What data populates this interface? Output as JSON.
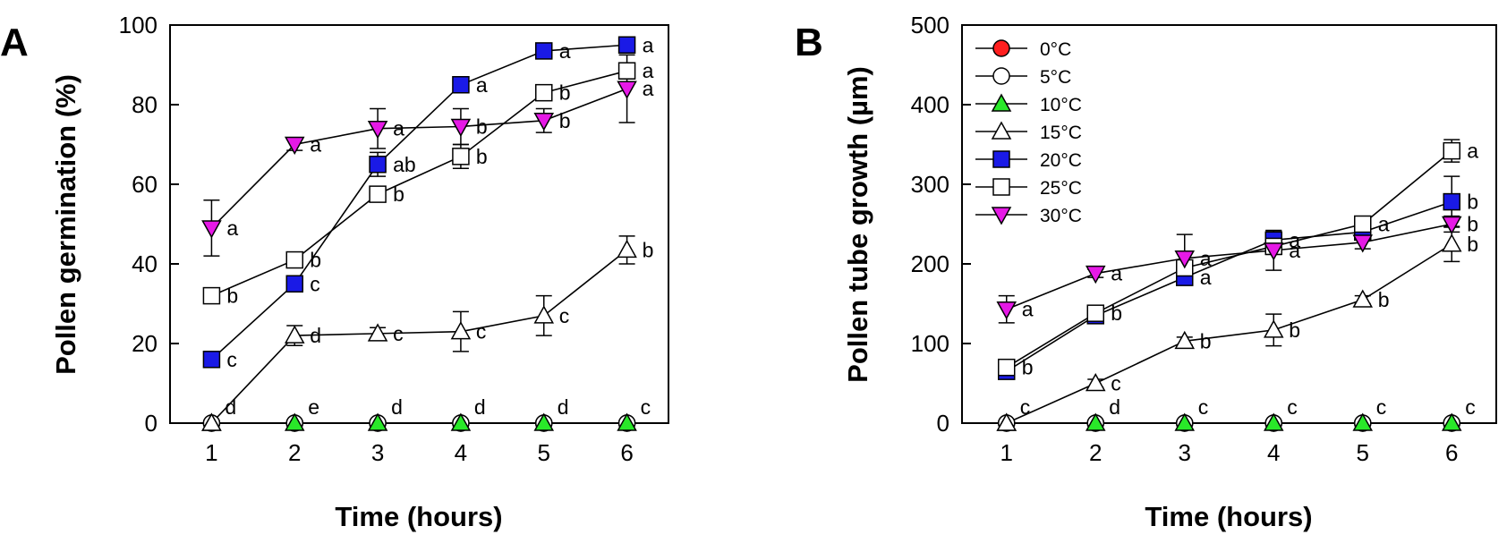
{
  "chart_data": [
    {
      "panel": "A",
      "type": "line",
      "xlabel": "Time (hours)",
      "ylabel": "Pollen germination (%)",
      "x": [
        1,
        2,
        3,
        4,
        5,
        6
      ],
      "xlim": [
        0.5,
        6.5
      ],
      "ylim": [
        0,
        100
      ],
      "yticks": [
        0,
        20,
        40,
        60,
        80,
        100
      ],
      "series": [
        {
          "name": "0°C",
          "marker": "circle",
          "fill": "#ff1f1f",
          "values": [
            0,
            0,
            0,
            0,
            0,
            0
          ],
          "errors": [
            0,
            0,
            0,
            0,
            0,
            0
          ],
          "labels": [
            null,
            null,
            null,
            null,
            null,
            null
          ]
        },
        {
          "name": "5°C",
          "marker": "circle",
          "fill": "#ffffff",
          "values": [
            0,
            0,
            0,
            0,
            0,
            0
          ],
          "errors": [
            0,
            0,
            0,
            0,
            0,
            0
          ],
          "labels": [
            "d",
            null,
            null,
            null,
            null,
            null
          ]
        },
        {
          "name": "10°C",
          "marker": "triangle-up",
          "fill": "#29e829",
          "values": [
            0,
            0,
            0,
            0,
            0,
            0
          ],
          "errors": [
            0,
            0,
            0,
            0,
            0,
            0
          ],
          "labels": [
            null,
            "e",
            "d",
            "d",
            "d",
            "c"
          ]
        },
        {
          "name": "15°C",
          "marker": "triangle-up",
          "fill": "#ffffff",
          "values": [
            0,
            22,
            22.5,
            23,
            27,
            43.5
          ],
          "errors": [
            0,
            2.5,
            1.5,
            5,
            5,
            3.5
          ],
          "labels": [
            null,
            "d",
            "c",
            "c",
            "c",
            "b"
          ]
        },
        {
          "name": "20°C",
          "marker": "square",
          "fill": "#1a1ae6",
          "values": [
            16,
            35,
            65,
            85,
            93.5,
            95
          ],
          "errors": [
            0,
            0,
            3,
            1,
            1,
            1
          ],
          "labels": [
            "c",
            "c",
            "ab",
            "a",
            "a",
            "a"
          ]
        },
        {
          "name": "25°C",
          "marker": "square",
          "fill": "#ffffff",
          "values": [
            32,
            41,
            57.5,
            67,
            83,
            88.5
          ],
          "errors": [
            0,
            0,
            0,
            3,
            0,
            2
          ],
          "labels": [
            "b",
            "b",
            "b",
            "b",
            "b",
            "a"
          ]
        },
        {
          "name": "30°C",
          "marker": "triangle-down",
          "fill": "#e619e6",
          "values": [
            49,
            70,
            74,
            74.5,
            76,
            84
          ],
          "errors": [
            7,
            1.5,
            5,
            4.5,
            3,
            8.5
          ],
          "labels": [
            "a",
            "a",
            "a",
            "b",
            "b",
            "a"
          ]
        }
      ]
    },
    {
      "panel": "B",
      "type": "line",
      "xlabel": "Time (hours)",
      "ylabel": "Pollen tube growth (µm)",
      "x": [
        1,
        2,
        3,
        4,
        5,
        6
      ],
      "xlim": [
        0.5,
        6.5
      ],
      "ylim": [
        0,
        500
      ],
      "yticks": [
        0,
        100,
        200,
        300,
        400,
        500
      ],
      "legend_position": "top-left",
      "series": [
        {
          "name": "0°C",
          "marker": "circle",
          "fill": "#ff1f1f",
          "values": [
            0,
            0,
            0,
            0,
            0,
            0
          ],
          "errors": [
            0,
            0,
            0,
            0,
            0,
            0
          ],
          "labels": [
            null,
            null,
            null,
            null,
            null,
            null
          ]
        },
        {
          "name": "5°C",
          "marker": "circle",
          "fill": "#ffffff",
          "values": [
            0,
            0,
            0,
            0,
            0,
            0
          ],
          "errors": [
            0,
            0,
            0,
            0,
            0,
            0
          ],
          "labels": [
            "c",
            null,
            null,
            null,
            null,
            null
          ]
        },
        {
          "name": "10°C",
          "marker": "triangle-up",
          "fill": "#29e829",
          "values": [
            0,
            0,
            0,
            0,
            0,
            0
          ],
          "errors": [
            0,
            0,
            0,
            0,
            0,
            0
          ],
          "labels": [
            null,
            "d",
            "c",
            "c",
            "c",
            "c"
          ]
        },
        {
          "name": "15°C",
          "marker": "triangle-up",
          "fill": "#ffffff",
          "values": [
            0,
            50,
            103,
            117,
            155,
            225
          ],
          "errors": [
            0,
            5,
            5,
            20,
            5,
            22
          ],
          "labels": [
            null,
            "c",
            "b",
            "b",
            "b",
            "b"
          ]
        },
        {
          "name": "20°C",
          "marker": "square",
          "fill": "#1a1ae6",
          "values": [
            65,
            135,
            183,
            230,
            240,
            278
          ],
          "errors": [
            5,
            8,
            8,
            12,
            8,
            32
          ],
          "labels": [
            null,
            null,
            "a",
            "a",
            null,
            "b"
          ]
        },
        {
          "name": "25°C",
          "marker": "square",
          "fill": "#ffffff",
          "values": [
            70,
            138,
            195,
            222,
            250,
            342
          ],
          "errors": [
            0,
            10,
            0,
            10,
            0,
            14
          ],
          "labels": [
            "b",
            "b",
            null,
            null,
            "a",
            "a"
          ]
        },
        {
          "name": "30°C",
          "marker": "triangle-down",
          "fill": "#e619e6",
          "values": [
            143,
            188,
            207,
            217,
            227,
            250
          ],
          "errors": [
            17,
            5,
            30,
            25,
            8,
            10
          ],
          "labels": [
            "a",
            "a",
            "a",
            "a",
            null,
            "b"
          ]
        }
      ]
    }
  ]
}
